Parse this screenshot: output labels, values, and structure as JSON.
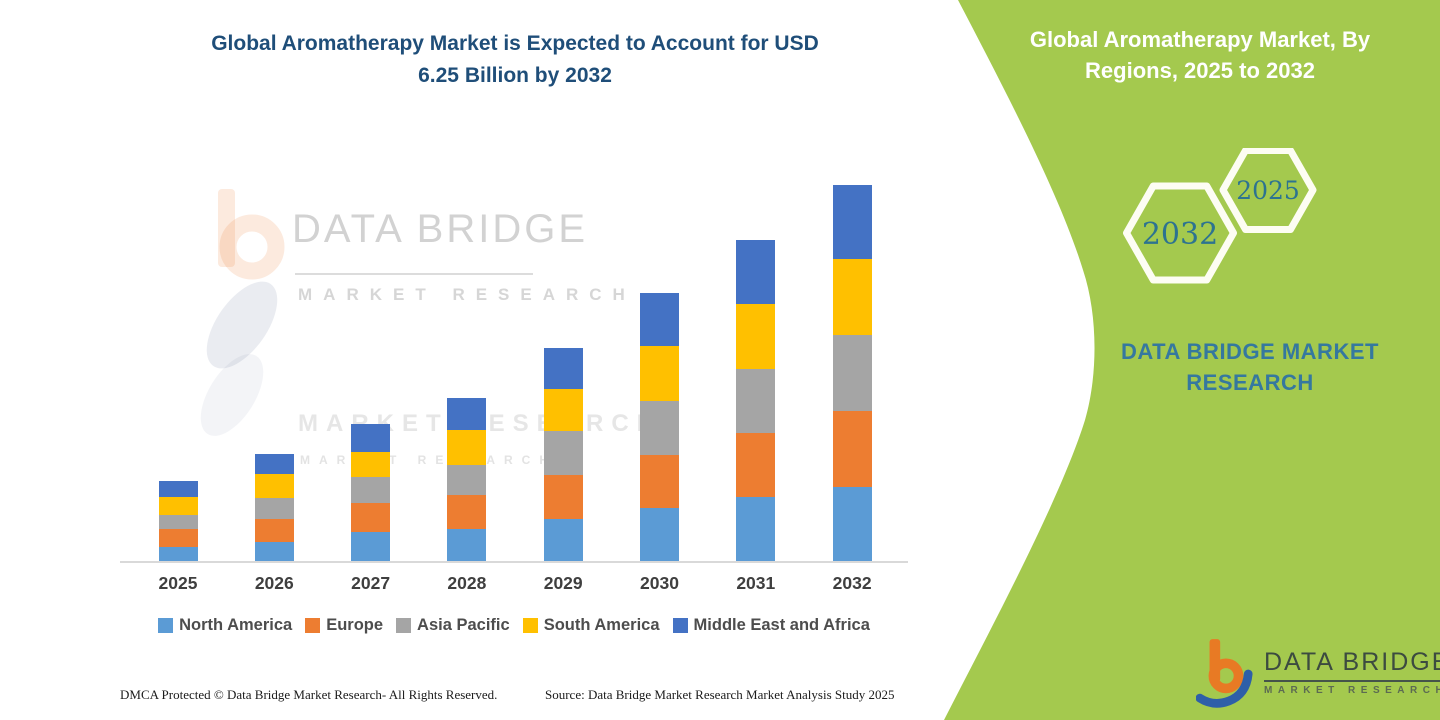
{
  "left_panel": {
    "title_line1": "Global Aromatherapy Market is Expected to Account for USD",
    "title_line2": "6.25 Billion by 2032",
    "title_color": "#1f4e79"
  },
  "watermark": {
    "brand": "DATA BRIDGE",
    "sub": "MARKET RESEARCH",
    "ghost_row1": "MARKET RESEARCH",
    "ghost_row2": "MARKET RESEARCH"
  },
  "right_panel": {
    "background_color": "#a4c94e",
    "title_line1": "Global Aromatherapy Market, By",
    "title_line2": "Regions, 2025 to 2032",
    "hexagons": [
      {
        "label": "2032"
      },
      {
        "label": "2025"
      }
    ],
    "brand_line1": "DATA BRIDGE MARKET",
    "brand_line2": "RESEARCH",
    "logo": {
      "name": "DATA BRIDGE",
      "sub": "MARKET RESEARCH"
    }
  },
  "footer": {
    "dmca": "DMCA Protected © Data Bridge Market Research- All Rights Reserved.",
    "source": "Source: Data Bridge Market Research Market Analysis Study 2025"
  },
  "chart_data": {
    "type": "bar",
    "stacked": true,
    "title": "Global Aromatherapy Market, By Regions, 2025 to 2032",
    "unit": "USD Billion",
    "categories": [
      "2025",
      "2026",
      "2027",
      "2028",
      "2029",
      "2030",
      "2031",
      "2032"
    ],
    "series": [
      {
        "name": "North America",
        "color": "#5B9BD5",
        "values": [
          0.23,
          0.32,
          0.48,
          0.53,
          0.7,
          0.88,
          1.06,
          1.23
        ]
      },
      {
        "name": "Europe",
        "color": "#ED7D31",
        "values": [
          0.3,
          0.38,
          0.48,
          0.57,
          0.73,
          0.89,
          1.08,
          1.27
        ]
      },
      {
        "name": "Asia Pacific",
        "color": "#A5A5A5",
        "values": [
          0.23,
          0.35,
          0.44,
          0.5,
          0.73,
          0.89,
          1.06,
          1.27
        ]
      },
      {
        "name": "South America",
        "color": "#FFC000",
        "values": [
          0.3,
          0.4,
          0.42,
          0.58,
          0.71,
          0.92,
          1.08,
          1.26
        ]
      },
      {
        "name": "Middle East and Africa",
        "color": "#4472C4",
        "values": [
          0.28,
          0.34,
          0.46,
          0.53,
          0.68,
          0.88,
          1.07,
          1.23
        ]
      }
    ],
    "totals": [
      1.34,
      1.79,
      2.28,
      2.71,
      3.55,
      4.46,
      5.35,
      6.25
    ],
    "annotation": "Expected to account for USD 6.25 Billion by 2032",
    "ylim": [
      0,
      6.5
    ],
    "gridlines": false,
    "y_axis_visible": false,
    "legend_position": "bottom"
  }
}
